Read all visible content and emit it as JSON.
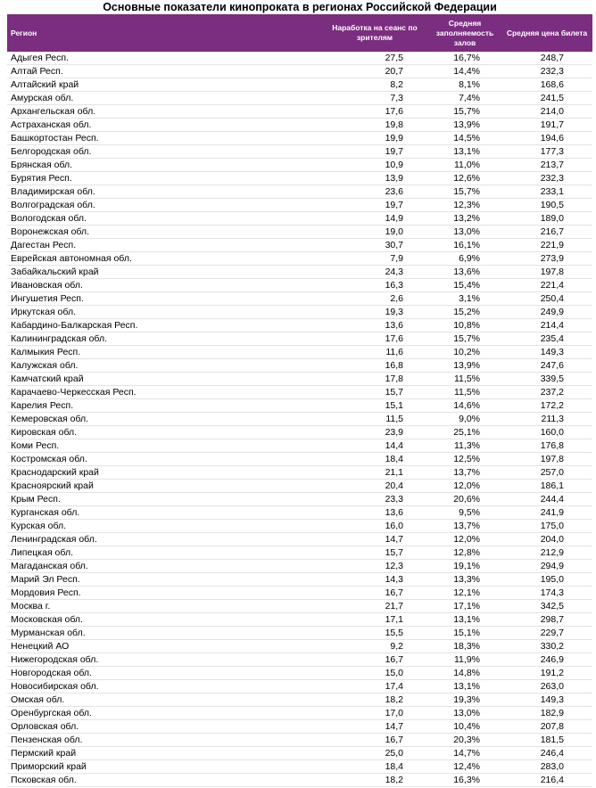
{
  "title": "Основные показатели кинопроката в регионах Российской Федерации",
  "table": {
    "header": [
      "Регион",
      "Наработка на сеанс по зрителям",
      "Средняя заполняемость залов",
      "Средняя цена билета"
    ],
    "rows": [
      [
        "Адыгея Респ.",
        "27,5",
        "16,7%",
        "248,7"
      ],
      [
        "Алтай Респ.",
        "20,7",
        "14,4%",
        "232,3"
      ],
      [
        "Алтайский край",
        "8,2",
        "8,1%",
        "168,6"
      ],
      [
        "Амурская обл.",
        "7,3",
        "7,4%",
        "241,5"
      ],
      [
        "Архангельская обл.",
        "17,6",
        "15,7%",
        "214,0"
      ],
      [
        "Астраханская обл.",
        "19,8",
        "13,9%",
        "191,7"
      ],
      [
        "Башкортостан Респ.",
        "19,9",
        "14,5%",
        "194,6"
      ],
      [
        "Белгородская обл.",
        "19,7",
        "13,1%",
        "177,3"
      ],
      [
        "Брянская обл.",
        "10,9",
        "11,0%",
        "213,7"
      ],
      [
        "Бурятия Респ.",
        "13,9",
        "12,6%",
        "232,3"
      ],
      [
        "Владимирская обл.",
        "23,6",
        "15,7%",
        "233,1"
      ],
      [
        "Волгоградская обл.",
        "19,7",
        "12,3%",
        "190,5"
      ],
      [
        "Вологодская обл.",
        "14,9",
        "13,2%",
        "189,0"
      ],
      [
        "Воронежская обл.",
        "19,0",
        "13,0%",
        "216,7"
      ],
      [
        "Дагестан Респ.",
        "30,7",
        "16,1%",
        "221,9"
      ],
      [
        "Еврейская автономная обл.",
        "7,9",
        "6,9%",
        "273,9"
      ],
      [
        "Забайкальский край",
        "24,3",
        "13,6%",
        "197,8"
      ],
      [
        "Ивановская обл.",
        "16,3",
        "15,4%",
        "221,4"
      ],
      [
        "Ингушетия Респ.",
        "2,6",
        "3,1%",
        "250,4"
      ],
      [
        "Иркутская обл.",
        "19,3",
        "15,2%",
        "249,9"
      ],
      [
        "Кабардино-Балкарская Респ.",
        "13,6",
        "10,8%",
        "214,4"
      ],
      [
        "Калининградская обл.",
        "17,6",
        "15,7%",
        "235,4"
      ],
      [
        "Калмыкия Респ.",
        "11,6",
        "10,2%",
        "149,3"
      ],
      [
        "Калужская обл.",
        "16,8",
        "13,9%",
        "247,6"
      ],
      [
        "Камчатский край",
        "17,8",
        "11,5%",
        "339,5"
      ],
      [
        "Карачаево-Черкесская Респ.",
        "15,7",
        "11,5%",
        "237,2"
      ],
      [
        "Карелия Респ.",
        "15,1",
        "14,6%",
        "172,2"
      ],
      [
        "Кемеровская обл.",
        "11,5",
        "9,0%",
        "211,3"
      ],
      [
        "Кировская обл.",
        "23,9",
        "25,1%",
        "160,0"
      ],
      [
        "Коми Респ.",
        "14,4",
        "11,3%",
        "176,8"
      ],
      [
        "Костромская обл.",
        "18,4",
        "12,5%",
        "197,8"
      ],
      [
        "Краснодарский край",
        "21,1",
        "13,7%",
        "257,0"
      ],
      [
        "Красноярский край",
        "20,4",
        "12,0%",
        "186,1"
      ],
      [
        "Крым Респ.",
        "23,3",
        "20,6%",
        "244,4"
      ],
      [
        "Курганская обл.",
        "13,6",
        "9,5%",
        "241,9"
      ],
      [
        "Курская обл.",
        "16,0",
        "13,7%",
        "175,0"
      ],
      [
        "Ленинградская обл.",
        "14,7",
        "12,0%",
        "204,0"
      ],
      [
        "Липецкая обл.",
        "15,7",
        "12,8%",
        "212,9"
      ],
      [
        "Магаданская обл.",
        "12,3",
        "19,1%",
        "294,9"
      ],
      [
        "Марий Эл Респ.",
        "14,3",
        "13,3%",
        "195,0"
      ],
      [
        "Мордовия Респ.",
        "16,7",
        "12,1%",
        "174,3"
      ],
      [
        "Москва г.",
        "21,7",
        "17,1%",
        "342,5"
      ],
      [
        "Московская обл.",
        "17,1",
        "13,1%",
        "298,7"
      ],
      [
        "Мурманская обл.",
        "15,5",
        "15,1%",
        "229,7"
      ],
      [
        "Ненецкий АО",
        "9,2",
        "18,3%",
        "330,2"
      ],
      [
        "Нижегородская обл.",
        "16,7",
        "11,9%",
        "246,9"
      ],
      [
        "Новгородская обл.",
        "15,0",
        "14,8%",
        "191,2"
      ],
      [
        "Новосибирская обл.",
        "17,4",
        "13,1%",
        "263,0"
      ],
      [
        "Омская обл.",
        "18,2",
        "19,3%",
        "149,3"
      ],
      [
        "Оренбургская обл.",
        "17,0",
        "13,0%",
        "182,9"
      ],
      [
        "Орловская обл.",
        "14,7",
        "10,4%",
        "207,8"
      ],
      [
        "Пензенская обл.",
        "16,7",
        "20,3%",
        "181,5"
      ],
      [
        "Пермский край",
        "25,0",
        "14,7%",
        "246,4"
      ],
      [
        "Приморский край",
        "18,4",
        "12,4%",
        "283,0"
      ],
      [
        "Псковская обл.",
        "18,2",
        "16,3%",
        "216,4"
      ]
    ]
  }
}
